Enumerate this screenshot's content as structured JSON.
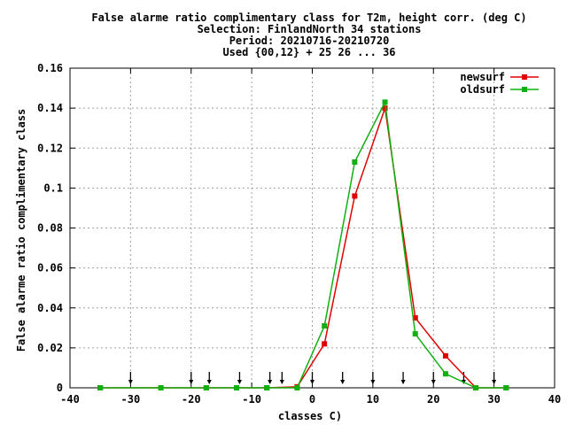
{
  "chart_data": {
    "type": "line",
    "title_lines": [
      "False alarme ratio complimentary class  for T2m, height corr. (deg C)",
      "Selection: FinlandNorth     34 stations",
      "Period: 20210716-20210720",
      "Used {00,12} + 25 26 ... 36"
    ],
    "xlabel": "classes C)",
    "ylabel": "False alarme ratio complimentary class",
    "xlim": [
      -40,
      40
    ],
    "ylim": [
      0,
      0.16
    ],
    "x_ticks": [
      -40,
      -30,
      -20,
      -10,
      0,
      10,
      20,
      30,
      40
    ],
    "x_tick_labels": [
      "-40",
      "-30",
      "-20",
      "-10",
      "0",
      "10",
      "20",
      "30",
      "40"
    ],
    "y_ticks": [
      0,
      0.02,
      0.04,
      0.06,
      0.08,
      0.1,
      0.12,
      0.14,
      0.16
    ],
    "y_tick_labels": [
      "0",
      "0.02",
      "0.04",
      "0.06",
      "0.08",
      "0.1",
      "0.12",
      "0.14",
      "0.16"
    ],
    "grid": true,
    "legend_position": "top-right",
    "arrows_x": [
      -30,
      -20,
      -17,
      -12,
      -7,
      -5,
      0,
      5,
      10,
      15,
      20,
      25,
      30
    ],
    "series": [
      {
        "name": "newsurf",
        "color": "#e00000",
        "x": [
          -35,
          -25,
          -17.5,
          -12.5,
          -7.5,
          -2.5,
          2,
          7,
          12,
          17,
          22,
          27,
          32
        ],
        "y": [
          0,
          0,
          0,
          0,
          0,
          0.0005,
          0.022,
          0.096,
          0.14,
          0.035,
          0.016,
          0,
          0
        ]
      },
      {
        "name": "oldsurf",
        "color": "#10b010",
        "x": [
          -35,
          -25,
          -17.5,
          -12.5,
          -7.5,
          -2.5,
          2,
          7,
          12,
          17,
          22,
          27,
          32
        ],
        "y": [
          0,
          0,
          0,
          0,
          0,
          0,
          0.031,
          0.113,
          0.143,
          0.027,
          0.007,
          0,
          0
        ]
      }
    ]
  }
}
